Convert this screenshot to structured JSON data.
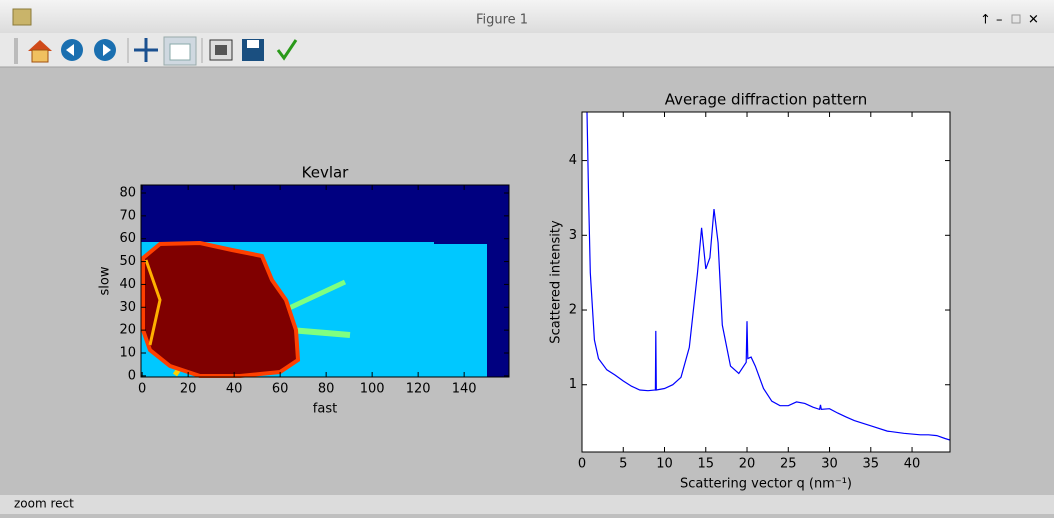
{
  "window": {
    "title": "Figure 1",
    "status": "zoom rect"
  },
  "chart_data": [
    {
      "type": "heatmap",
      "title": "Kevlar",
      "x_label": "fast",
      "y_label": "slow",
      "xlim": [
        -0.5,
        159.5
      ],
      "ylim": [
        -0.5,
        83.5
      ],
      "xticks": [
        0,
        20,
        40,
        60,
        80,
        100,
        120,
        140
      ],
      "yticks": [
        0,
        10,
        20,
        30,
        40,
        50,
        60,
        70,
        80
      ]
    },
    {
      "type": "line",
      "title": "Average diffraction pattern",
      "x_label": "Scattering vector q (nm⁻¹)",
      "y_label": "Scattered intensity",
      "x": [
        0.6,
        0.8,
        1,
        1.5,
        2,
        3,
        4,
        5,
        6,
        7,
        8,
        8.9,
        8.95,
        9.0,
        10,
        11,
        12,
        13,
        14,
        14.5,
        15,
        15.5,
        16,
        16.5,
        17,
        18,
        19,
        19.9,
        20,
        20.1,
        20.5,
        21,
        22,
        23,
        24,
        25,
        26,
        27,
        28,
        28.8,
        28.9,
        29,
        30,
        31,
        32,
        33,
        35,
        37,
        39,
        41,
        42,
        43,
        44,
        44.6
      ],
      "series": [
        {
          "color": "#0000ff",
          "values": [
            4.65,
            3.5,
            2.5,
            1.6,
            1.35,
            1.2,
            1.13,
            1.05,
            0.98,
            0.93,
            0.92,
            0.93,
            1.72,
            0.93,
            0.95,
            1.0,
            1.1,
            1.5,
            2.5,
            3.1,
            2.55,
            2.7,
            3.35,
            2.9,
            1.8,
            1.25,
            1.15,
            1.3,
            1.85,
            1.35,
            1.37,
            1.25,
            0.95,
            0.78,
            0.72,
            0.72,
            0.77,
            0.75,
            0.7,
            0.67,
            0.73,
            0.67,
            0.68,
            0.62,
            0.57,
            0.52,
            0.45,
            0.38,
            0.35,
            0.33,
            0.33,
            0.32,
            0.28,
            0.26
          ]
        }
      ],
      "xlim": [
        0,
        44.6
      ],
      "ylim": [
        0.1,
        4.65
      ],
      "xticks": [
        0,
        5,
        10,
        15,
        20,
        25,
        30,
        35,
        40
      ],
      "yticks": [
        1,
        2,
        3,
        4
      ]
    }
  ]
}
